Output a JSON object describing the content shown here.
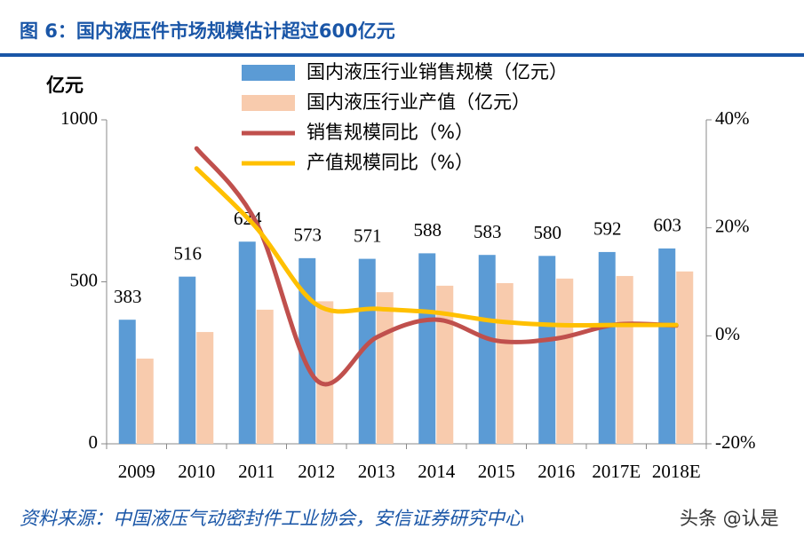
{
  "title": "图 6：国内液压件市场规模估计超过600亿元",
  "source": "资料来源：中国液压气动密封件工业协会，安信证券研究中心",
  "watermark": "头条 @认是",
  "chart_data": {
    "type": "bar",
    "y_label": "亿元",
    "categories": [
      "2009",
      "2010",
      "2011",
      "2012",
      "2013",
      "2014",
      "2015",
      "2016",
      "2017E",
      "2018E"
    ],
    "ylim": [
      0,
      1000
    ],
    "yticks": [
      0,
      500,
      1000
    ],
    "y2lim": [
      -20,
      40
    ],
    "y2ticks": [
      {
        "value": -20,
        "label": "-20%"
      },
      {
        "value": 0,
        "label": "0%"
      },
      {
        "value": 20,
        "label": "20%"
      },
      {
        "value": 40,
        "label": "40%"
      }
    ],
    "series": [
      {
        "name": "国内液压行业销售规模（亿元）",
        "type": "bar",
        "color": "#5b9bd5",
        "values": [
          383,
          516,
          624,
          573,
          571,
          588,
          583,
          580,
          592,
          603
        ],
        "data_labels": true
      },
      {
        "name": "国内液压行业产值（亿元）",
        "type": "bar",
        "color": "#f8cbad",
        "values": [
          263,
          345,
          414,
          440,
          468,
          488,
          496,
          510,
          518,
          532
        ]
      },
      {
        "name": "销售规模同比（%）",
        "type": "line",
        "axis": "y2",
        "color": "#c0504d",
        "values": [
          null,
          34.7,
          20.9,
          -8.2,
          -0.3,
          3.0,
          -0.9,
          -0.5,
          2.1,
          1.9
        ]
      },
      {
        "name": "产值规模同比（%）",
        "type": "line",
        "axis": "y2",
        "color": "#ffc000",
        "values": [
          null,
          31,
          20,
          5.8,
          5,
          4.3,
          2.7,
          2,
          2,
          2
        ]
      }
    ]
  }
}
